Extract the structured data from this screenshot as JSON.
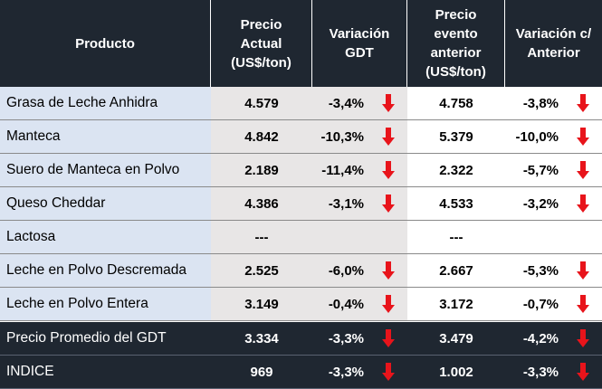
{
  "header": {
    "producto": "Producto",
    "precio_actual": [
      "Precio",
      "Actual",
      "(US$/ton)"
    ],
    "variacion_gdt": [
      "Variación",
      "GDT"
    ],
    "precio_anterior": [
      "Precio",
      "evento",
      "anterior",
      "(US$/ton)"
    ],
    "variacion_anterior": [
      "Variación c/",
      "Anterior"
    ]
  },
  "rows": [
    {
      "producto": "Grasa de Leche Anhidra",
      "precio": "4.579",
      "var_gdt": "-3,4%",
      "precio_ant": "4.758",
      "var_ant": "-3,8%"
    },
    {
      "producto": "Manteca",
      "precio": "4.842",
      "var_gdt": "-10,3%",
      "precio_ant": "5.379",
      "var_ant": "-10,0%"
    },
    {
      "producto": "Suero de Manteca en Polvo",
      "precio": "2.189",
      "var_gdt": "-11,4%",
      "precio_ant": "2.322",
      "var_ant": "-5,7%"
    },
    {
      "producto": "Queso Cheddar",
      "precio": "4.386",
      "var_gdt": "-3,1%",
      "precio_ant": "4.533",
      "var_ant": "-3,2%"
    },
    {
      "producto": "Lactosa",
      "precio": "---",
      "var_gdt": "",
      "precio_ant": "---",
      "var_ant": ""
    },
    {
      "producto": "Leche en Polvo Descremada",
      "precio": "2.525",
      "var_gdt": "-6,0%",
      "precio_ant": "2.667",
      "var_ant": "-5,3%"
    },
    {
      "producto": "Leche en Polvo Entera",
      "precio": "3.149",
      "var_gdt": "-0,4%",
      "precio_ant": "3.172",
      "var_ant": "-0,7%"
    }
  ],
  "summary": [
    {
      "producto": "Precio Promedio del GDT",
      "precio": "3.334",
      "var_gdt": "-3,3%",
      "precio_ant": "3.479",
      "var_ant": "-4,2%"
    },
    {
      "producto": "INDICE",
      "precio": "969",
      "var_gdt": "-3,3%",
      "precio_ant": "1.002",
      "var_ant": "-3,3%"
    }
  ],
  "colors": {
    "header_bg": "#1f2731",
    "product_col_bg": "#dbe4f2",
    "current_cols_bg": "#e8e6e6",
    "arrow_down": "#e8141b"
  },
  "icons": {
    "decrease": "arrow-down-icon"
  }
}
